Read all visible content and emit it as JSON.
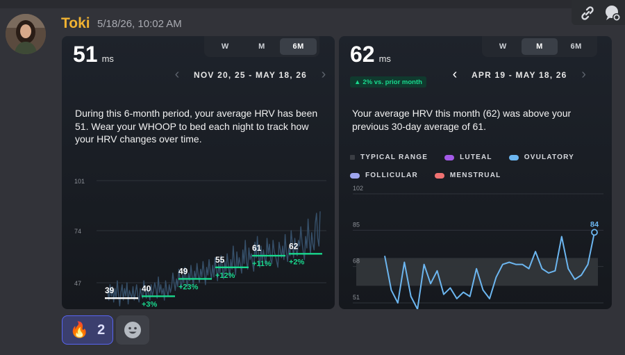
{
  "message": {
    "author": "Toki",
    "timestamp": "5/18/26, 10:02 AM"
  },
  "actions": {
    "icons": [
      "link-icon",
      "reply-settings-icon"
    ]
  },
  "left_card": {
    "value": "51",
    "unit": "ms",
    "tabs": [
      "W",
      "M",
      "6M"
    ],
    "active_tab": "6M",
    "date_range": "NOV 20, 25 - MAY 18, 26",
    "description": "During this 6-month period, your average HRV has been 51. Wear your WHOOP to bed each night to track how your HRV changes over time."
  },
  "right_card": {
    "value": "62",
    "unit": "ms",
    "tabs": [
      "W",
      "M",
      "6M"
    ],
    "active_tab": "M",
    "badge": "2% vs. prior month",
    "date_range": "APR 19 - MAY 18, 26",
    "description": "Your average HRV this month (62) was above your previous 30-day average of 61.",
    "legend": [
      {
        "label": "TYPICAL RANGE",
        "color": "#2e3136"
      },
      {
        "label": "LUTEAL",
        "color": "#a45ae8"
      },
      {
        "label": "OVULATORY",
        "color": "#6cb6f0"
      },
      {
        "label": "FOLLICULAR",
        "color": "#9fa6ef"
      },
      {
        "label": "MENSTRUAL",
        "color": "#f07272"
      }
    ]
  },
  "chart_data": [
    {
      "type": "line",
      "y_ticks": [
        "101",
        "74",
        "47"
      ],
      "ylim": [
        38,
        101
      ],
      "monthly_averages": [
        {
          "value": "39",
          "change": ""
        },
        {
          "value": "40",
          "change": "+3%"
        },
        {
          "value": "49",
          "change": "+23%"
        },
        {
          "value": "55",
          "change": "+12%"
        },
        {
          "value": "61",
          "change": "+11%"
        },
        {
          "value": "62",
          "change": "+2%"
        }
      ],
      "daily_values": [
        43,
        38,
        46,
        40,
        45,
        37,
        44,
        39,
        48,
        41,
        35,
        42,
        46,
        38,
        44,
        40,
        47,
        36,
        43,
        41,
        39,
        45,
        38,
        42,
        46,
        40,
        37,
        44,
        41,
        39,
        48,
        43,
        39,
        45,
        41,
        38,
        46,
        40,
        43,
        47,
        44,
        39,
        50,
        42,
        46,
        41,
        44,
        38,
        48,
        43,
        40,
        46,
        42,
        45,
        52,
        47,
        43,
        49,
        45,
        54,
        48,
        44,
        51,
        47,
        55,
        49,
        45,
        52,
        48,
        56,
        50,
        46,
        53,
        49,
        57,
        51,
        47,
        54,
        50,
        58,
        52,
        46,
        55,
        51,
        59,
        53,
        49,
        56,
        50,
        60,
        54,
        48,
        57,
        52,
        61,
        55,
        49,
        58,
        53,
        62,
        56,
        50,
        59,
        54,
        66,
        57,
        51,
        63,
        55,
        60,
        56,
        52,
        64,
        57,
        69,
        58,
        54,
        65,
        59,
        62,
        57,
        53,
        68,
        60,
        71,
        61,
        55,
        66,
        58,
        64,
        60,
        56,
        70,
        62,
        67,
        59,
        57,
        69,
        63,
        61,
        58,
        55,
        68,
        64,
        60,
        66,
        59,
        72,
        63,
        58,
        65,
        61,
        74,
        67,
        60,
        70,
        64,
        61,
        69,
        66,
        76,
        68,
        63,
        59,
        71,
        65,
        80,
        69,
        62,
        73,
        67,
        64,
        78,
        83,
        70,
        66,
        84
      ]
    },
    {
      "type": "line",
      "y_ticks": [
        "102",
        "85",
        "68",
        "51"
      ],
      "ylim": [
        51,
        102
      ],
      "typical_range": [
        59,
        72
      ],
      "highlight": {
        "label": "84",
        "value": 84
      },
      "values": [
        73,
        57,
        51,
        70,
        54,
        48,
        69,
        60,
        66,
        55,
        58,
        53,
        56,
        54,
        67,
        57,
        53,
        63,
        69,
        70,
        69,
        69,
        67,
        75,
        67,
        65,
        66,
        82,
        67,
        62,
        64,
        69,
        84
      ]
    }
  ]
}
